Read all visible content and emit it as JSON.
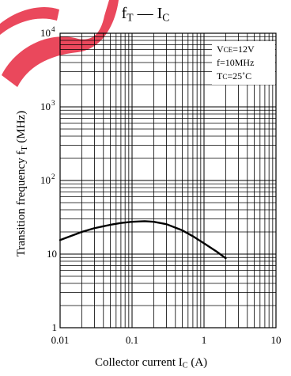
{
  "chart_data": {
    "type": "line",
    "title": {
      "main": "f",
      "main_sub": "T",
      "dash": "—",
      "right": "I",
      "right_sub": "C"
    },
    "xlabel": {
      "text": "Collector current  I",
      "sub": "C",
      "unit": "(A)"
    },
    "ylabel": {
      "text": "Transition frequency  f",
      "sub": "T",
      "unit": "(MHz)"
    },
    "x_scale": "log",
    "y_scale": "log",
    "xlim": [
      0.01,
      10
    ],
    "ylim": [
      1,
      10000
    ],
    "x_ticks": [
      "0.01",
      "0.1",
      "1",
      "10"
    ],
    "y_ticks": [
      {
        "base": "1",
        "exp": ""
      },
      {
        "base": "10",
        "exp": ""
      },
      {
        "base": "10",
        "exp": "2"
      },
      {
        "base": "10",
        "exp": "3"
      },
      {
        "base": "10",
        "exp": "4"
      }
    ],
    "grid": true,
    "conditions": [
      {
        "label": "V",
        "sub": "CE",
        "value": "=12V"
      },
      {
        "label": "f=10MHz",
        "sub": "",
        "value": ""
      },
      {
        "label": "T",
        "sub": "C",
        "value": "=25˚C"
      }
    ],
    "series": [
      {
        "color": "#000000",
        "x": [
          0.01,
          0.015,
          0.02,
          0.03,
          0.05,
          0.07,
          0.1,
          0.15,
          0.2,
          0.3,
          0.5,
          0.7,
          1.0,
          1.5,
          2.0
        ],
        "y": [
          15.5,
          18,
          20,
          22.5,
          25,
          26.5,
          27.5,
          28,
          27.5,
          25.5,
          21,
          17.5,
          14,
          10.8,
          8.8
        ]
      }
    ]
  },
  "watermark_color": "#e8344a"
}
